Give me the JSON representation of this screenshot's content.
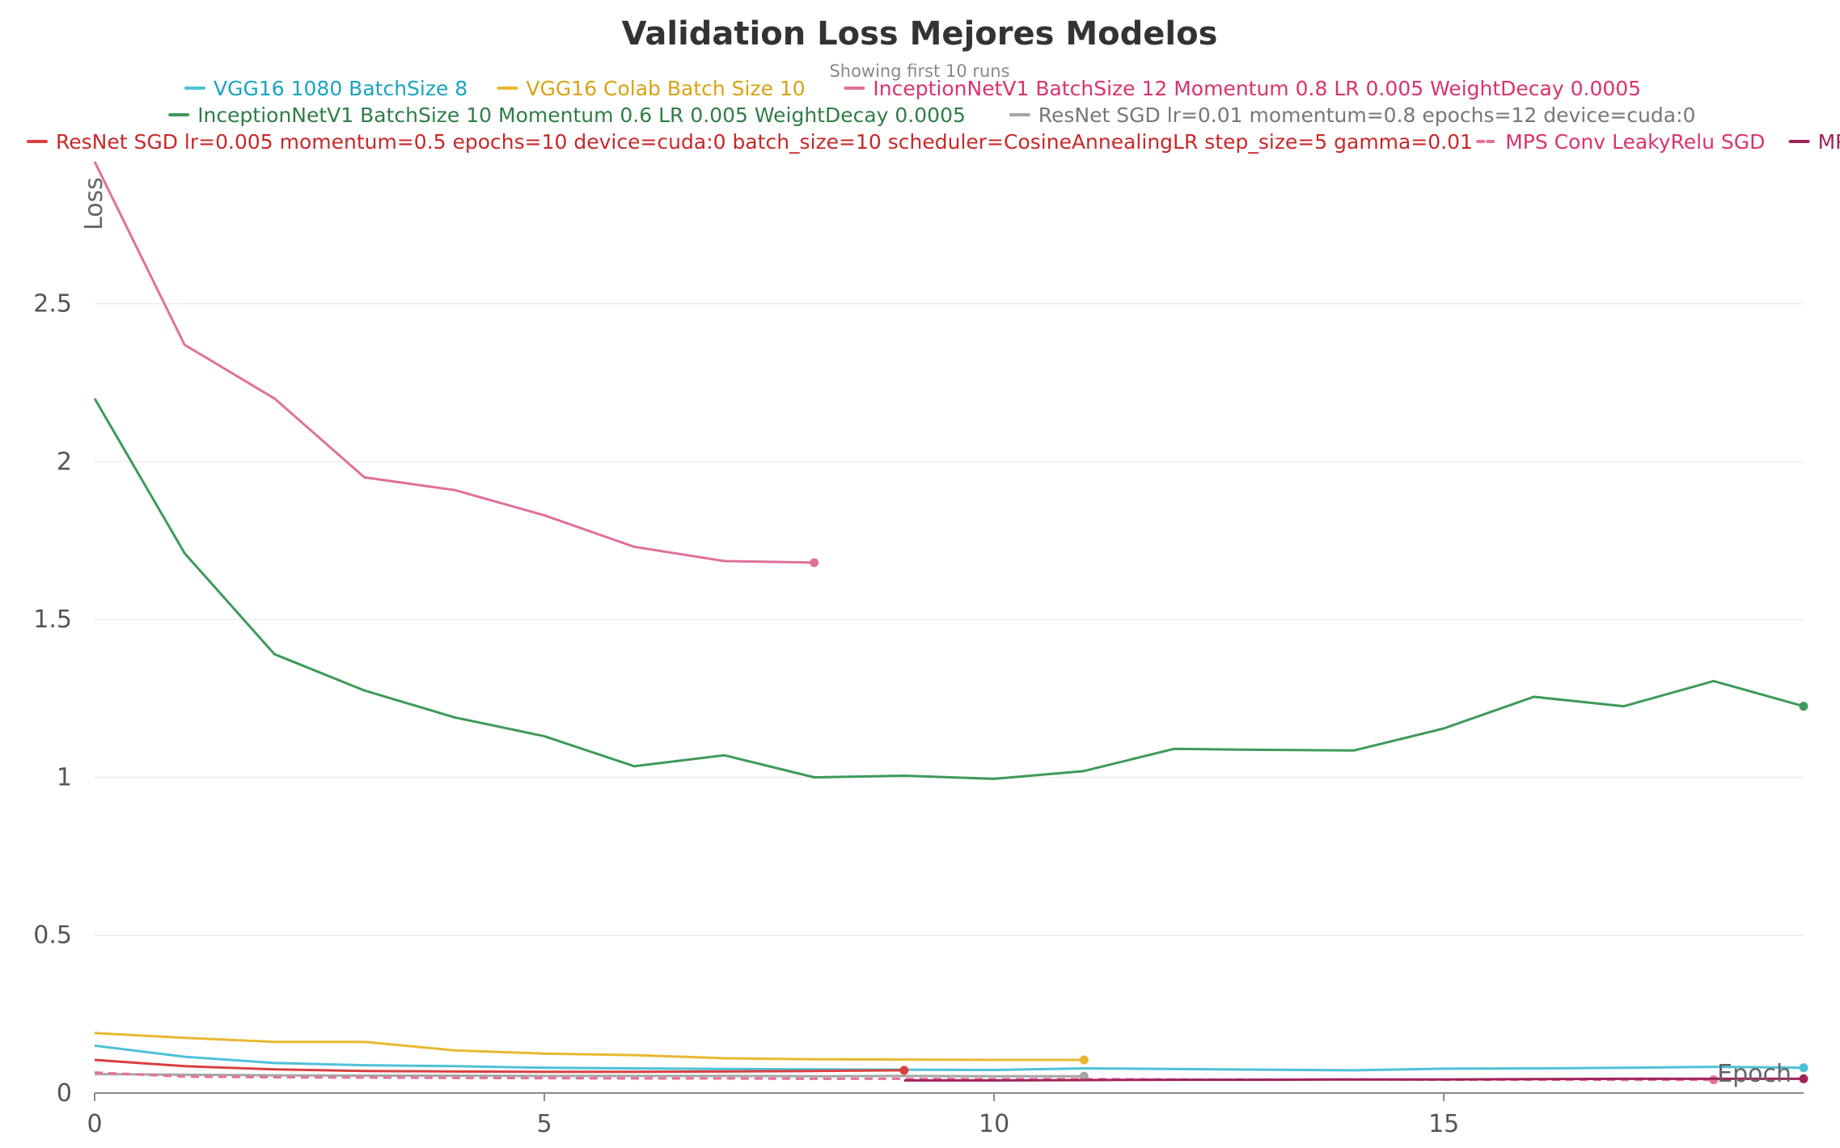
{
  "chart_data": {
    "type": "line",
    "title": "Validation Loss Mejores Modelos",
    "subtitle": "Showing first 10 runs",
    "xlabel": "Epoch",
    "ylabel": "Loss",
    "xlim": [
      0,
      19
    ],
    "ylim": [
      0,
      2.95
    ],
    "xticks": [
      0,
      5,
      10,
      15
    ],
    "yticks": [
      0,
      0.5,
      1,
      1.5,
      2,
      2.5
    ],
    "ytick_labels": [
      "0",
      "0.5",
      "1",
      "1.5",
      "2",
      "2.5"
    ],
    "grid": true,
    "legend_position": "top",
    "series": [
      {
        "name": "VGG16 1080 BatchSize 8",
        "color": "#4ec1d8",
        "text_color": "#1aa3c0",
        "dash": false,
        "x": [
          0,
          1,
          2,
          3,
          4,
          5,
          6,
          7,
          8,
          9,
          10,
          11,
          12,
          13,
          14,
          15,
          16,
          17,
          18,
          19
        ],
        "y": [
          0.15,
          0.115,
          0.095,
          0.088,
          0.085,
          0.08,
          0.078,
          0.076,
          0.075,
          0.074,
          0.073,
          0.078,
          0.076,
          0.074,
          0.072,
          0.077,
          0.078,
          0.08,
          0.083,
          0.08
        ]
      },
      {
        "name": "VGG16 Colab Batch Size 10",
        "color": "#e8b830",
        "text_color": "#d9a312",
        "dash": false,
        "x": [
          0,
          1,
          2,
          3,
          4,
          5,
          6,
          7,
          8,
          9,
          10,
          11
        ],
        "y": [
          0.19,
          0.175,
          0.162,
          0.162,
          0.135,
          0.125,
          0.12,
          0.11,
          0.107,
          0.106,
          0.105,
          0.105
        ]
      },
      {
        "name": "InceptionNetV1 BatchSize 12 Momentum 0.8 LR 0.005 WeightDecay 0.0005",
        "color": "#e0709a",
        "text_color": "#d9336e",
        "dash": false,
        "x": [
          0,
          1,
          2,
          3,
          4,
          5,
          6,
          7,
          8
        ],
        "y": [
          2.95,
          2.37,
          2.2,
          1.95,
          1.91,
          1.83,
          1.73,
          1.685,
          1.68
        ]
      },
      {
        "name": "InceptionNetV1 BatchSize 10 Momentum 0.6 LR 0.005 WeightDecay 0.0005",
        "color": "#3e9a5a",
        "text_color": "#2f7d46",
        "dash": false,
        "x": [
          0,
          1,
          2,
          3,
          4,
          5,
          6,
          7,
          8,
          9,
          10,
          11,
          12,
          13,
          14,
          15,
          16,
          17,
          18,
          19
        ],
        "y": [
          2.2,
          1.71,
          1.39,
          1.275,
          1.19,
          1.13,
          1.035,
          1.07,
          1.0,
          1.005,
          0.995,
          1.02,
          1.09,
          1.087,
          1.085,
          1.155,
          1.255,
          1.225,
          1.305,
          1.225
        ]
      },
      {
        "name": "ResNet SGD lr=0.01 momentum=0.8 epochs=12 device=cuda:0",
        "color": "#a6a6a6",
        "text_color": "#777777",
        "dash": false,
        "x": [
          0,
          1,
          2,
          3,
          4,
          5,
          6,
          7,
          8,
          9,
          10,
          11
        ],
        "y": [
          0.06,
          0.058,
          0.056,
          0.055,
          0.055,
          0.054,
          0.054,
          0.054,
          0.053,
          0.054,
          0.053,
          0.053
        ]
      },
      {
        "name": "ResNet SGD lr=0.005 momentum=0.5 epochs=10 device=cuda:0 batch_size=10 scheduler=CosineAnnealingLR step_size=5 gamma=0.01",
        "color": "#d94040",
        "text_color": "#c82828",
        "dash": false,
        "x": [
          0,
          1,
          2,
          3,
          4,
          5,
          6,
          7,
          8,
          9
        ],
        "y": [
          0.105,
          0.085,
          0.075,
          0.07,
          0.068,
          0.067,
          0.067,
          0.068,
          0.07,
          0.072
        ]
      },
      {
        "name": "MPS Conv LeakyRelu SGD",
        "color": "#e8709a",
        "text_color": "#d9336e",
        "dash": true,
        "x": [
          0,
          1,
          2,
          3,
          4,
          5,
          6,
          7,
          8,
          9,
          10,
          11,
          12,
          13,
          14,
          15,
          16,
          17,
          18
        ],
        "y": [
          0.065,
          0.052,
          0.05,
          0.049,
          0.048,
          0.047,
          0.046,
          0.046,
          0.045,
          0.045,
          0.044,
          0.044,
          0.043,
          0.043,
          0.043,
          0.042,
          0.042,
          0.042,
          0.042
        ]
      },
      {
        "name": "MPS Conv",
        "color": "#a0245a",
        "text_color": "#a0245a",
        "dash": false,
        "x": [
          9,
          10,
          11,
          12,
          13,
          14,
          15,
          16,
          17,
          18,
          19
        ],
        "y": [
          0.04,
          0.04,
          0.041,
          0.042,
          0.042,
          0.043,
          0.043,
          0.044,
          0.045,
          0.045,
          0.045
        ]
      }
    ]
  }
}
